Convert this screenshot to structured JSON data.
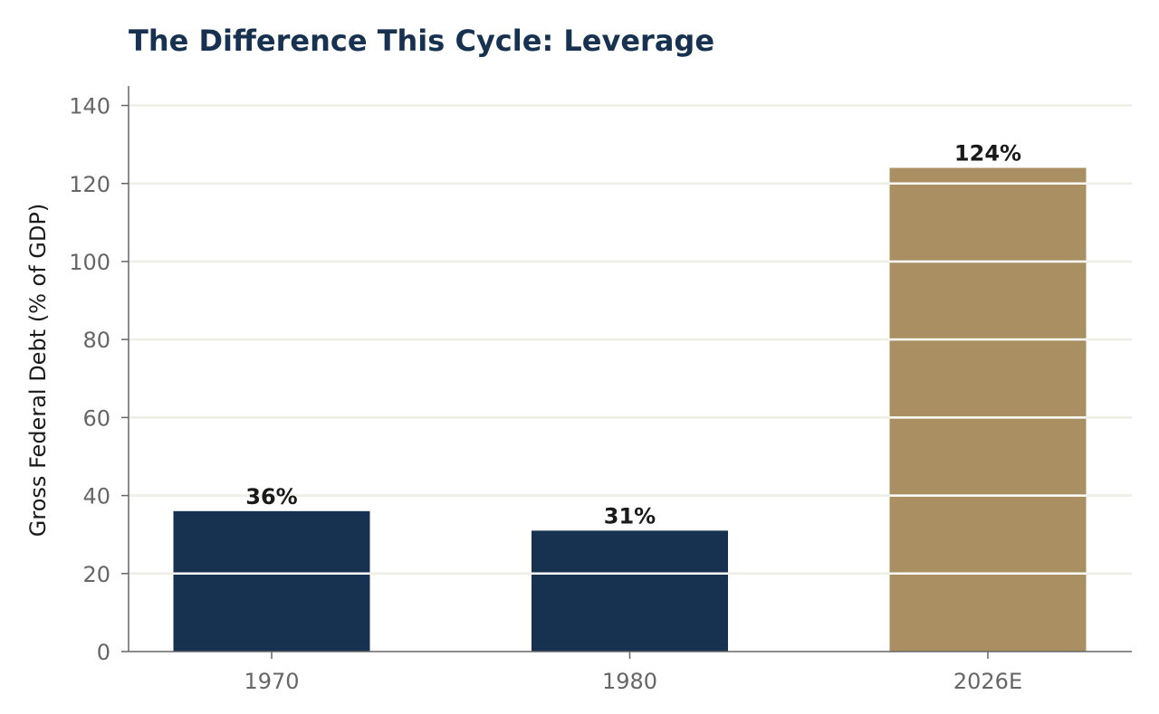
{
  "chart_data": {
    "type": "bar",
    "title": "The Difference This Cycle: Leverage",
    "xlabel": "",
    "ylabel": "Gross Federal Debt (% of GDP)",
    "categories": [
      "1970",
      "1980",
      "2026E"
    ],
    "values": [
      36,
      31,
      124
    ],
    "data_labels": [
      "36%",
      "31%",
      "124%"
    ],
    "bar_colors": [
      "#163250",
      "#163250",
      "#a98f62"
    ],
    "ylim": [
      0,
      145
    ],
    "yticks": [
      0,
      20,
      40,
      60,
      80,
      100,
      120,
      140
    ],
    "grid": true,
    "legend": "none"
  },
  "colors": {
    "title": "#163250",
    "grid": "#eeeee4",
    "axis": "#666666",
    "text": "#1a1a1a"
  }
}
